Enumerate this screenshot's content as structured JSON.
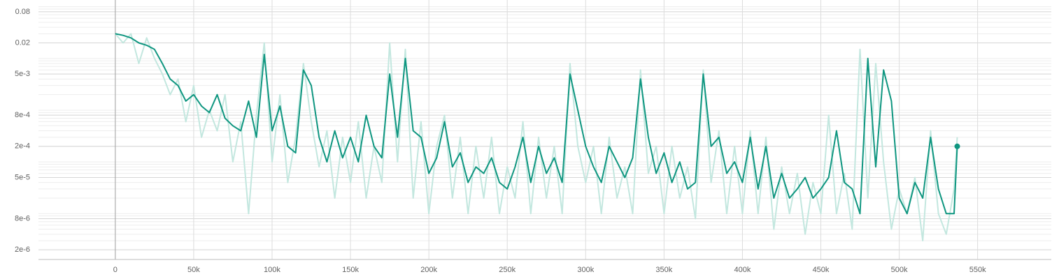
{
  "chart_data": {
    "type": "line",
    "log_y": true,
    "grid": true,
    "xlim": [
      -49000,
      597000
    ],
    "ylim": [
      1.3e-06,
      0.135
    ],
    "xticks": [
      0,
      {
        "value": 50000,
        "label": "50k"
      },
      {
        "value": 100000,
        "label": "100k"
      },
      {
        "value": 150000,
        "label": "150k"
      },
      {
        "value": 200000,
        "label": "200k"
      },
      {
        "value": 250000,
        "label": "250k"
      },
      {
        "value": 300000,
        "label": "300k"
      },
      {
        "value": 350000,
        "label": "350k"
      },
      {
        "value": 400000,
        "label": "400k"
      },
      {
        "value": 450000,
        "label": "450k"
      },
      {
        "value": 500000,
        "label": "500k"
      },
      {
        "value": 550000,
        "label": "550k"
      }
    ],
    "yticks": [
      0.08,
      0.02,
      {
        "value": 0.005,
        "label": "5e-3"
      },
      {
        "value": 0.0008,
        "label": "8e-4"
      },
      {
        "value": 0.0002,
        "label": "2e-4"
      },
      {
        "value": 5e-05,
        "label": "5e-5"
      },
      {
        "value": 8e-06,
        "label": "8e-6"
      },
      {
        "value": 2e-06,
        "label": "2e-6"
      }
    ],
    "x": [
      0,
      5000,
      10000,
      15000,
      20000,
      25000,
      30000,
      35000,
      40000,
      45000,
      50000,
      55000,
      60000,
      65000,
      70000,
      75000,
      80000,
      85000,
      90000,
      95000,
      100000,
      105000,
      110000,
      115000,
      120000,
      125000,
      130000,
      135000,
      140000,
      145000,
      150000,
      155000,
      160000,
      165000,
      170000,
      175000,
      180000,
      185000,
      190000,
      195000,
      200000,
      205000,
      210000,
      215000,
      220000,
      225000,
      230000,
      235000,
      240000,
      245000,
      250000,
      255000,
      260000,
      265000,
      270000,
      275000,
      280000,
      285000,
      290000,
      295000,
      300000,
      305000,
      310000,
      315000,
      320000,
      325000,
      330000,
      335000,
      340000,
      345000,
      350000,
      355000,
      360000,
      365000,
      370000,
      375000,
      380000,
      385000,
      390000,
      395000,
      400000,
      405000,
      410000,
      415000,
      420000,
      425000,
      430000,
      435000,
      440000,
      445000,
      450000,
      455000,
      460000,
      465000,
      470000,
      475000,
      480000,
      485000,
      490000,
      495000,
      500000,
      505000,
      510000,
      515000,
      520000,
      525000,
      530000,
      535000,
      537000
    ],
    "series": [
      {
        "color": "#c3e7df",
        "values": [
          0.03,
          0.02,
          0.03,
          0.008,
          0.025,
          0.01,
          0.005,
          0.002,
          0.004,
          0.0006,
          0.003,
          0.0003,
          0.001,
          0.0004,
          0.002,
          0.0001,
          0.0006,
          1e-05,
          0.0008,
          0.02,
          0.0001,
          0.002,
          4e-05,
          0.0003,
          0.008,
          0.0006,
          8e-05,
          0.0004,
          2e-05,
          0.0003,
          4e-05,
          0.0006,
          2e-05,
          0.0002,
          4e-05,
          0.02,
          0.0001,
          0.015,
          2e-05,
          0.0006,
          1e-05,
          0.0002,
          0.0008,
          2e-05,
          0.0003,
          1e-05,
          0.0002,
          2e-05,
          0.0003,
          1e-05,
          8e-05,
          2e-05,
          0.0006,
          1e-05,
          0.0003,
          2e-05,
          0.0002,
          1e-05,
          0.008,
          0.0002,
          4e-05,
          0.0002,
          1e-05,
          0.0003,
          2e-05,
          8e-05,
          1e-05,
          0.006,
          6e-05,
          0.0002,
          1e-05,
          0.0002,
          2e-05,
          8e-05,
          8e-06,
          0.006,
          4e-05,
          0.0004,
          1e-05,
          0.0002,
          1e-05,
          0.0004,
          1e-05,
          0.0003,
          5e-06,
          8e-05,
          1e-05,
          6e-05,
          4e-06,
          4e-05,
          1e-05,
          0.0008,
          1e-05,
          6e-05,
          5e-06,
          0.015,
          2e-05,
          0.008,
          0.0001,
          5e-06,
          3e-05,
          1e-05,
          5e-05,
          3e-06,
          0.0004,
          1e-05,
          4e-06,
          3e-05,
          0.0003
        ]
      },
      {
        "color": "#0f9680",
        "values": [
          0.03,
          0.028,
          0.025,
          0.02,
          0.018,
          0.015,
          0.008,
          0.004,
          0.003,
          0.0015,
          0.002,
          0.0012,
          0.0009,
          0.002,
          0.0007,
          0.0005,
          0.0004,
          0.0015,
          0.0003,
          0.012,
          0.0004,
          0.0012,
          0.0002,
          0.00015,
          0.006,
          0.003,
          0.0003,
          0.0001,
          0.0004,
          0.00012,
          0.0003,
          0.0001,
          0.0008,
          0.0002,
          0.00012,
          0.005,
          0.0003,
          0.01,
          0.0004,
          0.0003,
          6e-05,
          0.00012,
          0.0006,
          8e-05,
          0.00015,
          4e-05,
          8e-05,
          6e-05,
          0.00012,
          4e-05,
          3e-05,
          8e-05,
          0.0003,
          4e-05,
          0.0002,
          6e-05,
          0.00012,
          4e-05,
          0.005,
          0.001,
          0.0002,
          8e-05,
          4e-05,
          0.0002,
          0.0001,
          5e-05,
          0.00012,
          0.004,
          0.0003,
          6e-05,
          0.00015,
          4e-05,
          0.0001,
          3e-05,
          4e-05,
          0.005,
          0.0002,
          0.0003,
          6e-05,
          0.0001,
          4e-05,
          0.0003,
          3e-05,
          0.0002,
          2e-05,
          6e-05,
          2e-05,
          3e-05,
          5e-05,
          2e-05,
          3e-05,
          5e-05,
          0.0004,
          4e-05,
          3e-05,
          1e-05,
          0.01,
          8e-05,
          0.006,
          0.0015,
          2e-05,
          1e-05,
          4e-05,
          2e-05,
          0.0003,
          3e-05,
          1e-05,
          1e-05,
          0.0002
        ]
      }
    ]
  }
}
